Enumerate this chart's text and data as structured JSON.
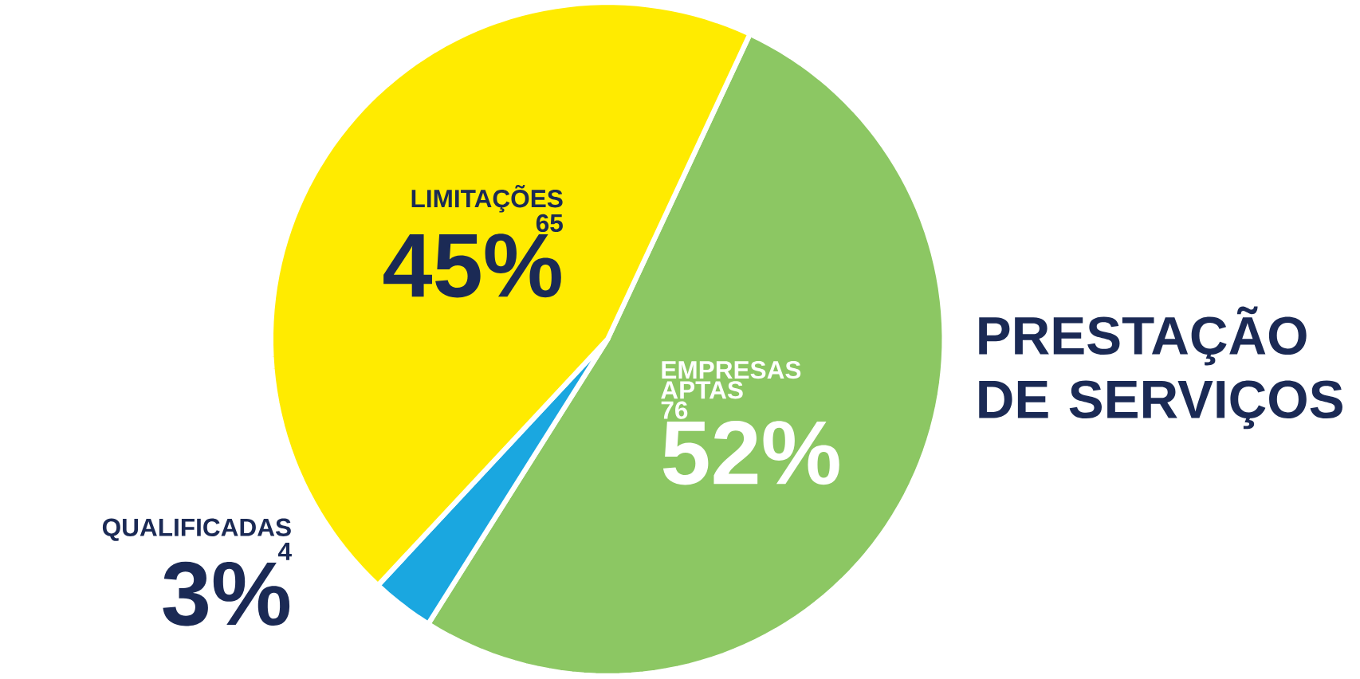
{
  "chart_data": {
    "type": "pie",
    "title": "PRESTAÇÃO DE SERVIÇOS",
    "categories": [
      "EMPRESAS APTAS",
      "QUALIFICADAS",
      "LIMITAÇÕES"
    ],
    "values": [
      52,
      3,
      45
    ],
    "value_labels": [
      "52%",
      "3%",
      "45%"
    ],
    "annotations": [
      "76",
      "4",
      "65"
    ],
    "colors": [
      "#8cc763",
      "#1aa7e0",
      "#ffeb00"
    ]
  }
}
